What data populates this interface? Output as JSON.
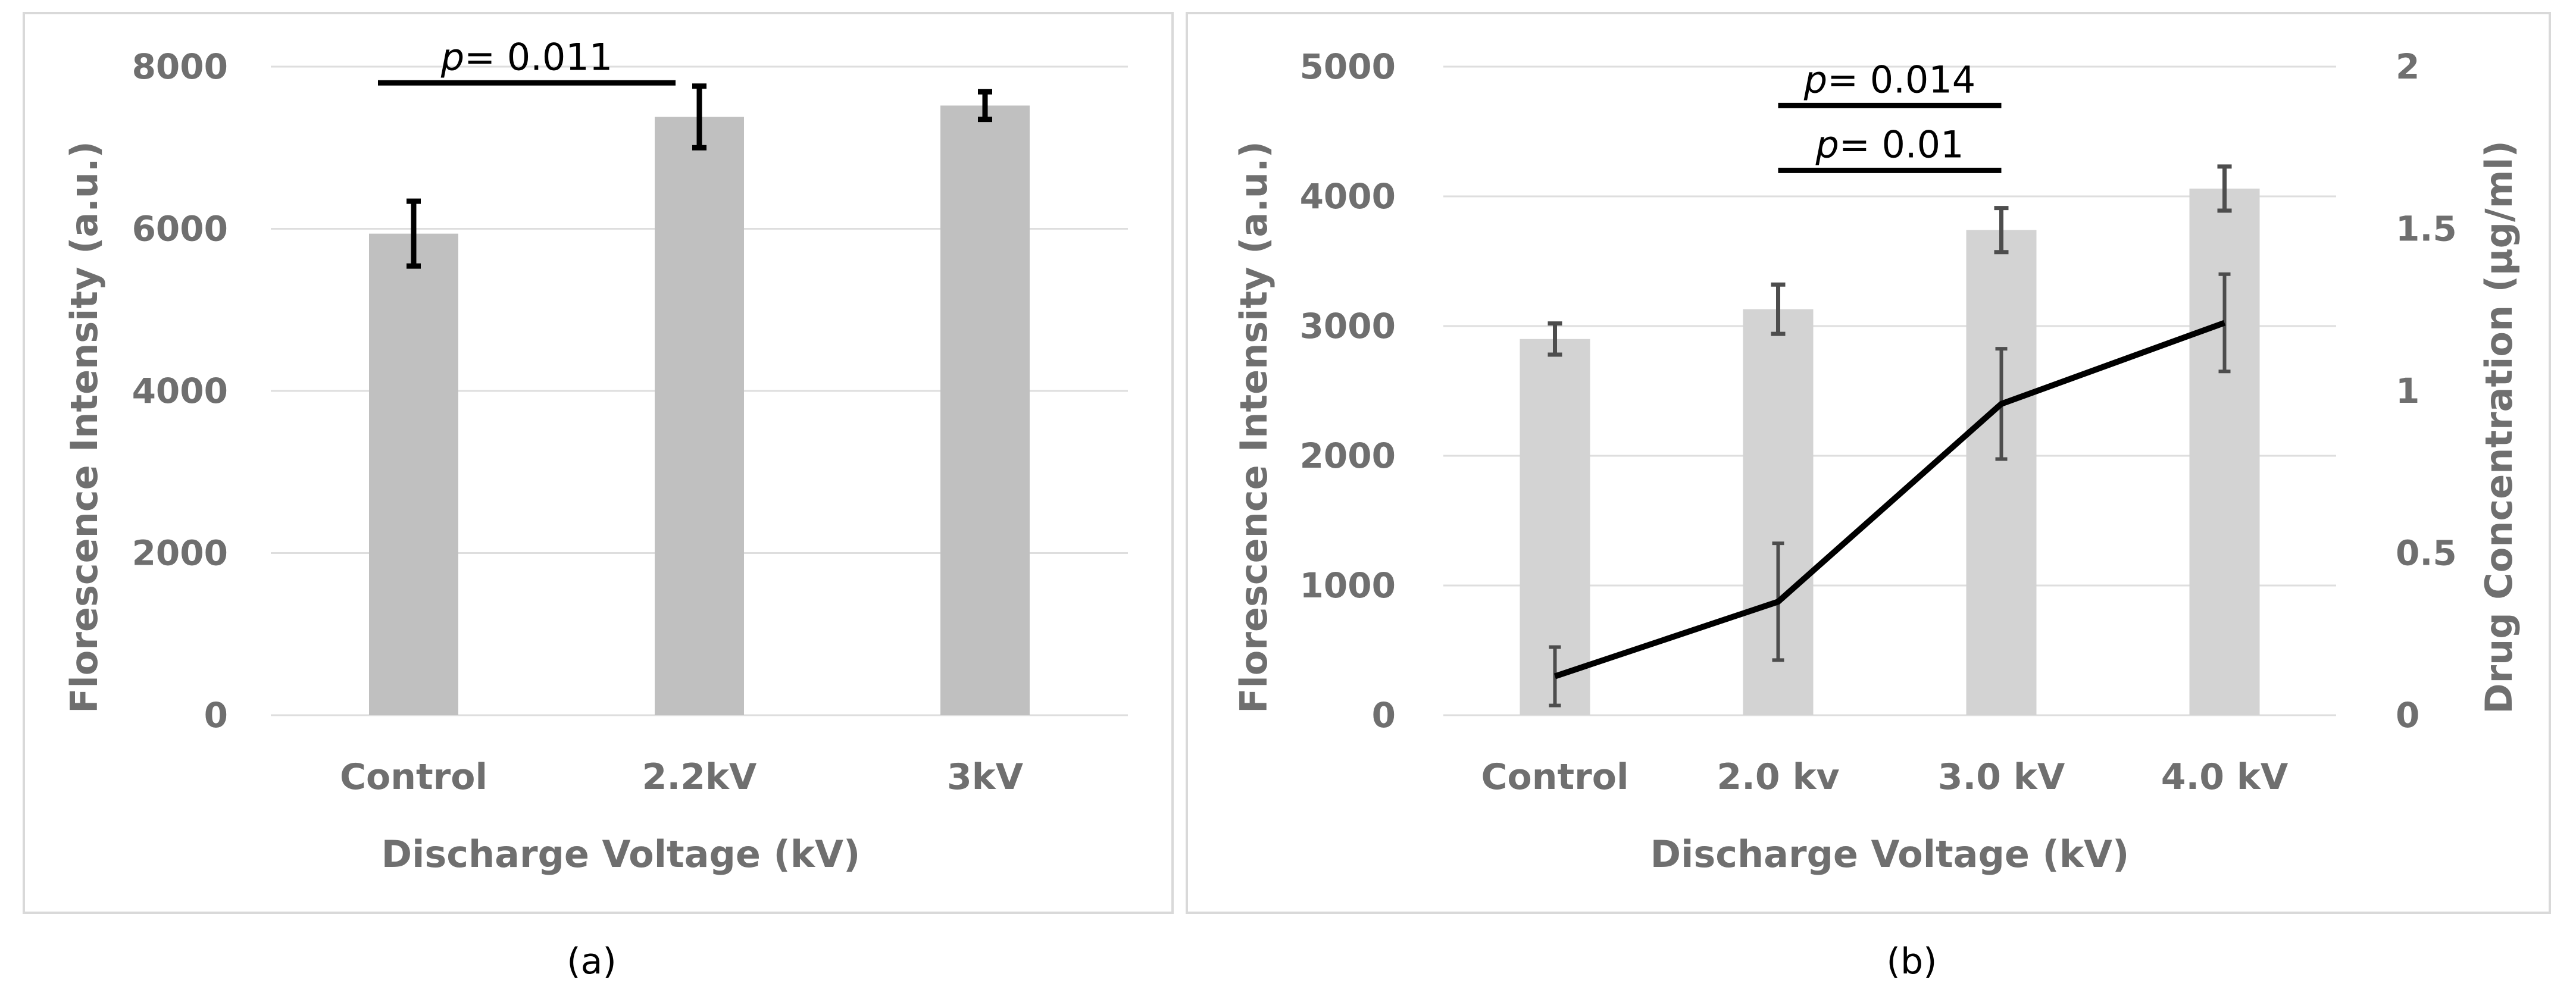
{
  "chart_data": [
    {
      "type": "bar",
      "panel_label": "(a)",
      "categories": [
        "Control",
        "2.2kV",
        "3kV"
      ],
      "series": [
        {
          "name": "Florescence Intensity",
          "values": [
            5940,
            7380,
            7520
          ],
          "errors": [
            400,
            380,
            170
          ],
          "color": "#c0c0c0"
        }
      ],
      "xlabel": "Discharge Voltage (kV)",
      "ylabel": "Florescence Intensity (a.u.)",
      "ylim": [
        0,
        8000
      ],
      "yticks": [
        0,
        2000,
        4000,
        6000,
        8000
      ],
      "grid": true,
      "annotations": [
        {
          "p_symbol": "p",
          "text": "= 0.011",
          "from": "Control",
          "to": "2.2kV",
          "level": 7800
        }
      ]
    },
    {
      "type": "bar",
      "panel_label": "(b)",
      "categories": [
        "Control",
        "2.0 kv",
        "3.0 kV",
        "4.0 kV"
      ],
      "series": [
        {
          "name": "Florescence Intensity",
          "axis": "left",
          "values": [
            2900,
            3130,
            3740,
            4060
          ],
          "errors": [
            120,
            190,
            170,
            170
          ],
          "color": "#d3d3d3"
        },
        {
          "name": "Drug Concentration",
          "axis": "right",
          "type": "line",
          "values": [
            0.12,
            0.35,
            0.96,
            1.21
          ],
          "errors": [
            0.09,
            0.18,
            0.17,
            0.15
          ],
          "color": "#000000"
        }
      ],
      "xlabel": "Discharge Voltage (kV)",
      "ylabel": "Florescence Intensity (a.u.)",
      "ylabel_right": "Drug Concentration (µg/ml)",
      "ylim": [
        0,
        5000
      ],
      "yticks": [
        0,
        1000,
        2000,
        3000,
        4000,
        5000
      ],
      "ylim_right": [
        0,
        2
      ],
      "yticks_right": [
        "0",
        "0.5",
        "1",
        "1.5",
        "2"
      ],
      "grid": true,
      "annotations": [
        {
          "p_symbol": "p",
          "text": "= 0.014",
          "from": "2.0 kv",
          "to": "3.0 kV",
          "level": 4700
        },
        {
          "p_symbol": "p",
          "text": "= 0.01",
          "from": "2.0 kv",
          "to": "3.0 kV",
          "level": 4200
        }
      ]
    }
  ]
}
